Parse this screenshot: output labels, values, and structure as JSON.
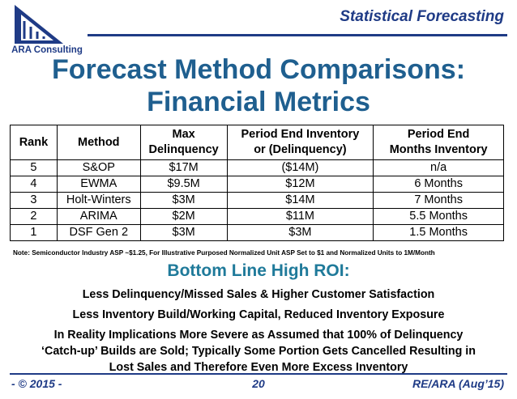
{
  "header": {
    "logo_text": "ARA Consulting",
    "title": "Statistical Forecasting"
  },
  "slide": {
    "title_line1": "Forecast Method Comparisons:",
    "title_line2": "Financial Metrics"
  },
  "table": {
    "headers": {
      "rank": "Rank",
      "method": "Method",
      "max_delinquency_line1": "Max",
      "max_delinquency_line2": "Delinquency",
      "period_end_inventory_line1": "Period End Inventory",
      "period_end_inventory_line2": "or (Delinquency)",
      "period_end_months_line1": "Period End",
      "period_end_months_line2": "Months Inventory"
    },
    "rows": [
      {
        "rank": "5",
        "method": "S&OP",
        "max_delinquency": "$17M",
        "period_end_inventory": "($14M)",
        "months_inventory": "n/a"
      },
      {
        "rank": "4",
        "method": "EWMA",
        "max_delinquency": "$9.5M",
        "period_end_inventory": "$12M",
        "months_inventory": "6 Months"
      },
      {
        "rank": "3",
        "method": "Holt-Winters",
        "max_delinquency": "$3M",
        "period_end_inventory": "$14M",
        "months_inventory": "7 Months"
      },
      {
        "rank": "2",
        "method": "ARIMA",
        "max_delinquency": "$2M",
        "period_end_inventory": "$11M",
        "months_inventory": "5.5 Months"
      },
      {
        "rank": "1",
        "method": "DSF Gen 2",
        "max_delinquency": "$3M",
        "period_end_inventory": "$3M",
        "months_inventory": "1.5 Months"
      }
    ]
  },
  "note": "Note: Semiconductor Industry ASP ~$1.25, For Illustrative Purposed Normalized Unit ASP Set to $1 and Normalized Units to 1M/Month",
  "roi_heading": "Bottom Line High ROI:",
  "bullets": {
    "b1": "Less Delinquency/Missed Sales & Higher Customer Satisfaction",
    "b2": "Less Inventory Build/Working Capital, Reduced Inventory Exposure",
    "b3_line1": "In Reality Implications More Severe as Assumed that 100% of Delinquency",
    "b3_line2": "‘Catch-up’ Builds are Sold; Typically Some Portion Gets Cancelled Resulting in",
    "b3_line3": "Lost Sales and Therefore Even More Excess Inventory"
  },
  "footer": {
    "left": "- © 2015 -",
    "center": "20",
    "right": "RE/ARA (Aug’15)"
  },
  "colors": {
    "brand_navy": "#1f3b86",
    "title_blue": "#1f5f8f",
    "roi_teal": "#1f7a9a"
  }
}
